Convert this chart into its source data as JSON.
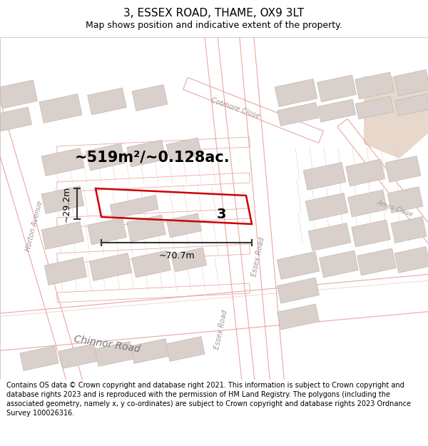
{
  "title": "3, ESSEX ROAD, THAME, OX9 3LT",
  "subtitle": "Map shows position and indicative extent of the property.",
  "footer": "Contains OS data © Crown copyright and database right 2021. This information is subject to Crown copyright and database rights 2023 and is reproduced with the permission of HM Land Registry. The polygons (including the associated geometry, namely x, y co-ordinates) are subject to Crown copyright and database rights 2023 Ordnance Survey 100026316.",
  "area_text": "~519m²/~0.128ac.",
  "width_text": "~70.7m",
  "height_text": "~29.2m",
  "plot_number": "3",
  "map_bg": "#f2eeeb",
  "building_fill": "#d9d0cb",
  "building_edge": "#c0b8b3",
  "road_fill": "#ffffff",
  "road_outline": "#e8b4b0",
  "plot_outline_color": "#cc0000",
  "dim_line_color": "#333333",
  "street_label_color": "#999999",
  "title_fontsize": 11,
  "subtitle_fontsize": 9,
  "footer_fontsize": 7.0,
  "area_fontsize": 15,
  "dim_fontsize": 9,
  "plot_label_fontsize": 14,
  "street_label_fontsize": 7,
  "figsize": [
    6.0,
    6.25
  ],
  "dpi": 100
}
